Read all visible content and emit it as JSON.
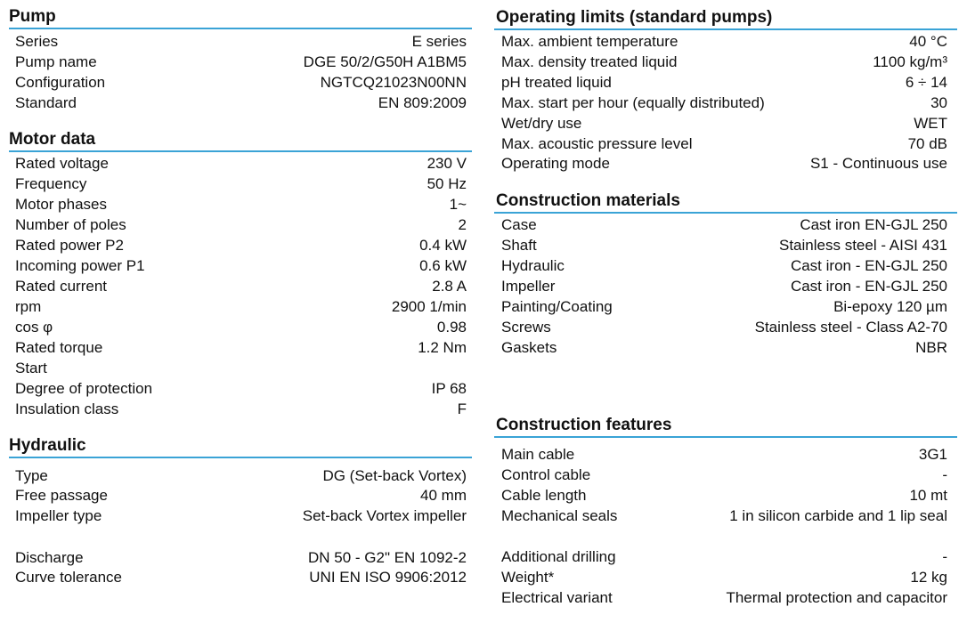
{
  "left": [
    {
      "title": "Pump",
      "rows": [
        {
          "label": "Series",
          "value": "E series"
        },
        {
          "label": "Pump name",
          "value": "DGE 50/2/G50H A1BM5"
        },
        {
          "label": "Configuration",
          "value": "NGTCQ21023N00NN"
        },
        {
          "label": "Standard",
          "value": "EN 809:2009"
        }
      ]
    },
    {
      "title": "Motor data",
      "rows": [
        {
          "label": "Rated voltage",
          "value": "230 V"
        },
        {
          "label": "Frequency",
          "value": "50 Hz"
        },
        {
          "label": "Motor phases",
          "value": "1~"
        },
        {
          "label": "Number of poles",
          "value": "2"
        },
        {
          "label": "Rated power P2",
          "value": "0.4 kW"
        },
        {
          "label": "Incoming power P1",
          "value": "0.6 kW"
        },
        {
          "label": "Rated current",
          "value": "2.8 A"
        },
        {
          "label": "rpm",
          "value": "2900 1/min"
        },
        {
          "label": "cos φ",
          "value": "0.98"
        },
        {
          "label": "Rated torque",
          "value": "1.2 Nm"
        },
        {
          "label": "Start"
        },
        {
          "label": "Degree of protection",
          "value": "IP 68"
        },
        {
          "label": "Insulation class",
          "value": "F"
        }
      ]
    },
    {
      "title": "Hydraulic",
      "rows": [
        {
          "label": "Type",
          "value": "DG (Set-back Vortex)"
        },
        {
          "label": "Free passage",
          "value": "40 mm"
        },
        {
          "label": "Impeller type",
          "value": "Set-back Vortex impeller"
        },
        {
          "label": "Discharge",
          "value": "DN 50 - G2\" EN 1092-2"
        },
        {
          "label": "Curve tolerance",
          "value": "UNI EN ISO 9906:2012"
        }
      ]
    }
  ],
  "right": [
    {
      "title": "Operating limits (standard pumps)",
      "rows": [
        {
          "label": "Max. ambient temperature",
          "value": "40 °C"
        },
        {
          "label": "Max. density treated liquid",
          "value": "1100 kg/m³"
        },
        {
          "label": "pH treated liquid",
          "value": "6 ÷ 14"
        },
        {
          "label": "Max.  start per hour (equally distributed)",
          "value": "30"
        },
        {
          "label": "Wet/dry use",
          "value": "WET"
        },
        {
          "label": "Max. acoustic pressure level",
          "value": "70 dB"
        },
        {
          "label": "Operating mode",
          "value": "S1 - Continuous use"
        }
      ]
    },
    {
      "title": "Construction materials",
      "rows": [
        {
          "label": "Case",
          "value": "Cast iron EN-GJL 250"
        },
        {
          "label": "Shaft",
          "value": "Stainless steel - AISI 431"
        },
        {
          "label": "Hydraulic",
          "value": "Cast iron  - EN-GJL 250"
        },
        {
          "label": "Impeller",
          "value": "Cast iron  - EN-GJL 250"
        },
        {
          "label": "Painting/Coating",
          "value": "Bi-epoxy 120 µm"
        },
        {
          "label": "Screws",
          "value": "Stainless steel - Class A2-70"
        },
        {
          "label": "Gaskets",
          "value": "NBR"
        }
      ]
    },
    {
      "title": "Construction features",
      "rows": [
        {
          "label": "Main cable",
          "value": "3G1"
        },
        {
          "label": "Control cable",
          "value": "-"
        },
        {
          "label": "Cable length",
          "value": "10 mt"
        },
        {
          "label": "Mechanical seals",
          "value": "1 in silicon carbide and 1 lip seal"
        },
        {
          "label": "Additional drilling",
          "value": "-"
        },
        {
          "label": "Weight*",
          "value": "12 kg"
        },
        {
          "label": "Electrical variant",
          "value": "Thermal protection and capacitor"
        }
      ]
    }
  ]
}
